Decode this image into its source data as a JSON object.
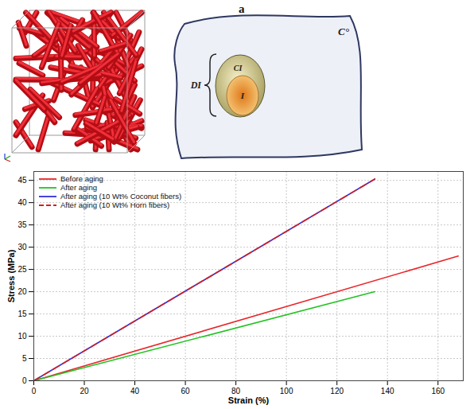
{
  "chart_data": {
    "type": "line",
    "xlabel": "Strain (%)",
    "ylabel": "Stress (MPa)",
    "xlim": [
      0,
      170
    ],
    "ylim": [
      0,
      47
    ],
    "xticks": [
      0,
      20,
      40,
      60,
      80,
      100,
      120,
      140,
      160
    ],
    "yticks": [
      0,
      5,
      10,
      15,
      20,
      25,
      30,
      35,
      40,
      45
    ],
    "grid": true,
    "legend": "upper left",
    "series": [
      {
        "name": "Before aging",
        "color": "#e8262b",
        "line_style": "solid",
        "x": [
          0,
          168
        ],
        "values": [
          0,
          28
        ]
      },
      {
        "name": "After aging",
        "color": "#22c322",
        "line_style": "solid",
        "x": [
          0,
          135
        ],
        "values": [
          0,
          20
        ]
      },
      {
        "name": "After aging (10 Wt% Coconut fibers)",
        "color": "#3030d8",
        "line_style": "solid",
        "x": [
          0,
          135
        ],
        "values": [
          0,
          45.3
        ]
      },
      {
        "name": "After aging (10 Wt% Horn fibers)",
        "color": "#d42020",
        "line_style": "dashed",
        "x": [
          0,
          135
        ],
        "values": [
          0,
          45.3
        ]
      }
    ]
  },
  "diagram": {
    "panel_label": "a",
    "labels": {
      "matrix": "C°",
      "coating": "CI",
      "core": "I",
      "bracket": "DI"
    }
  }
}
